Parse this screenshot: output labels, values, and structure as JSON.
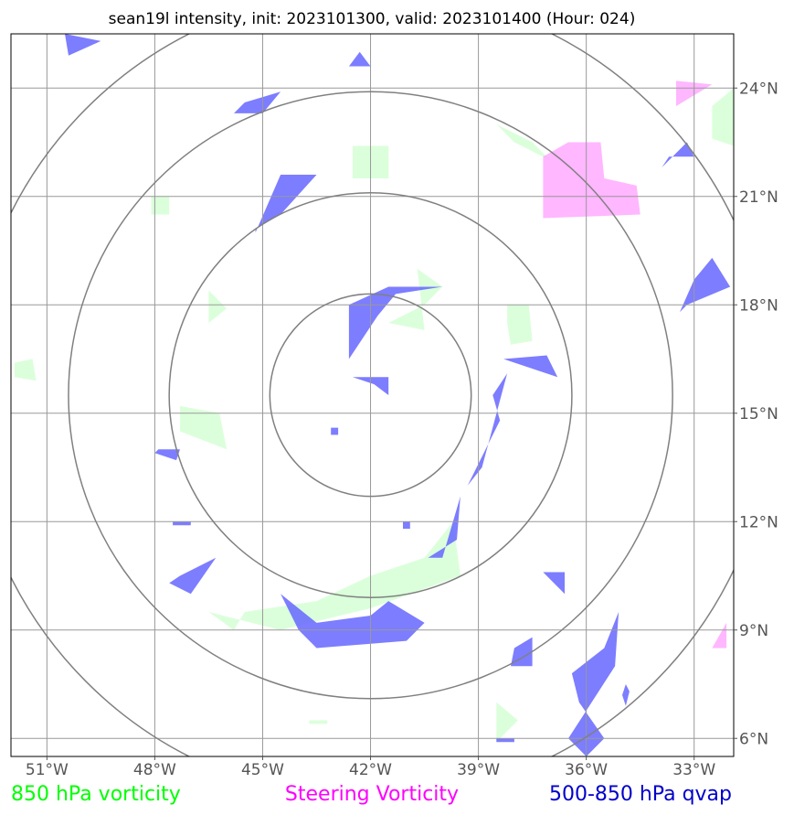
{
  "chart_data": {
    "type": "map",
    "title": "sean19l intensity, init: 2023101300, valid: 2023101400 (Hour: 024)",
    "x_ticks": [
      {
        "value": -51,
        "label": "51°W"
      },
      {
        "value": -48,
        "label": "48°W"
      },
      {
        "value": -45,
        "label": "45°W"
      },
      {
        "value": -42,
        "label": "42°W"
      },
      {
        "value": -39,
        "label": "39°W"
      },
      {
        "value": -36,
        "label": "36°W"
      },
      {
        "value": -33,
        "label": "33°W"
      }
    ],
    "y_ticks": [
      {
        "value": 6,
        "label": "6°N"
      },
      {
        "value": 9,
        "label": "9°N"
      },
      {
        "value": 12,
        "label": "12°N"
      },
      {
        "value": 15,
        "label": "15°N"
      },
      {
        "value": 18,
        "label": "18°N"
      },
      {
        "value": 21,
        "label": "21°N"
      },
      {
        "value": 24,
        "label": "24°N"
      }
    ],
    "xlim": [
      -52,
      -31.9
    ],
    "ylim": [
      5.5,
      25.5
    ],
    "grid": true,
    "range_rings": {
      "center": [
        -42,
        15.5
      ],
      "radii_deg": [
        2.8,
        5.6,
        8.4,
        11.2
      ],
      "color": "#808080"
    },
    "legend": [
      {
        "label": "850 hPa vorticity",
        "color": "#00ff00"
      },
      {
        "label": "Steering Vorticity",
        "color": "#ff00ff"
      },
      {
        "label": "500-850 hPa qvap",
        "color": "#0000cc"
      }
    ],
    "layers": [
      {
        "name": "850 hPa vorticity",
        "fill": "#ccffcc",
        "opacity": 0.7,
        "polygons": [
          [
            [
              -42.5,
              22.4
            ],
            [
              -41.5,
              22.4
            ],
            [
              -41.5,
              21.5
            ],
            [
              -42.5,
              21.5
            ]
          ],
          [
            [
              -48.1,
              21.0
            ],
            [
              -47.6,
              21.0
            ],
            [
              -47.6,
              20.5
            ],
            [
              -48.1,
              20.5
            ]
          ],
          [
            [
              -51.9,
              16.4
            ],
            [
              -51.4,
              16.5
            ],
            [
              -51.3,
              15.9
            ],
            [
              -51.9,
              16.0
            ]
          ],
          [
            [
              -46.5,
              18.4
            ],
            [
              -46.0,
              17.9
            ],
            [
              -46.5,
              17.5
            ]
          ],
          [
            [
              -40.7,
              19.0
            ],
            [
              -40.0,
              18.5
            ],
            [
              -40.5,
              18.0
            ],
            [
              -41.5,
              17.5
            ],
            [
              -40.5,
              17.3
            ]
          ],
          [
            [
              -38.2,
              18.0
            ],
            [
              -37.6,
              18.0
            ],
            [
              -37.5,
              17.0
            ],
            [
              -38.1,
              16.9
            ],
            [
              -38.2,
              17.5
            ]
          ],
          [
            [
              -38.5,
              23.0
            ],
            [
              -37.5,
              22.5
            ],
            [
              -37.0,
              22.0
            ],
            [
              -38.0,
              22.5
            ]
          ],
          [
            [
              -32.5,
              23.5
            ],
            [
              -31.9,
              24.0
            ],
            [
              -31.9,
              22.4
            ],
            [
              -32.5,
              22.6
            ]
          ],
          [
            [
              -47.3,
              15.2
            ],
            [
              -46.2,
              15.0
            ],
            [
              -46.0,
              14.0
            ],
            [
              -47.3,
              14.5
            ]
          ],
          [
            [
              -45.5,
              9.5
            ],
            [
              -43.5,
              9.8
            ],
            [
              -42.0,
              10.5
            ],
            [
              -40.5,
              11.0
            ],
            [
              -39.7,
              12.0
            ],
            [
              -39.5,
              10.5
            ],
            [
              -42.0,
              9.6
            ],
            [
              -44.5,
              9.0
            ],
            [
              -46.5,
              9.5
            ],
            [
              -45.8,
              9.0
            ]
          ],
          [
            [
              -43.7,
              6.5
            ],
            [
              -43.2,
              6.5
            ],
            [
              -43.2,
              6.4
            ],
            [
              -43.7,
              6.4
            ]
          ],
          [
            [
              -38.5,
              7.0
            ],
            [
              -37.9,
              6.5
            ],
            [
              -38.5,
              5.9
            ]
          ]
        ]
      },
      {
        "name": "Steering Vorticity",
        "fill": "#ff99ff",
        "opacity": 0.7,
        "polygons": [
          [
            [
              -37.2,
              22.1
            ],
            [
              -36.5,
              22.5
            ],
            [
              -35.6,
              22.5
            ],
            [
              -35.5,
              21.5
            ],
            [
              -34.6,
              21.3
            ],
            [
              -34.5,
              20.5
            ],
            [
              -37.2,
              20.4
            ]
          ],
          [
            [
              -33.5,
              24.2
            ],
            [
              -32.5,
              24.1
            ],
            [
              -33.5,
              23.5
            ]
          ],
          [
            [
              -32.5,
              8.5
            ],
            [
              -32.1,
              8.5
            ],
            [
              -32.1,
              9.2
            ]
          ]
        ]
      },
      {
        "name": "500-850 hPa qvap",
        "fill": "#6666ff",
        "opacity": 0.85,
        "polygons": [
          [
            [
              -50.5,
              25.5
            ],
            [
              -49.5,
              25.3
            ],
            [
              -50.4,
              24.9
            ]
          ],
          [
            [
              -42.3,
              25.0
            ],
            [
              -42.0,
              24.6
            ],
            [
              -42.6,
              24.6
            ]
          ],
          [
            [
              -45.5,
              23.6
            ],
            [
              -44.5,
              23.9
            ],
            [
              -45.0,
              23.3
            ],
            [
              -45.8,
              23.3
            ]
          ],
          [
            [
              -45.2,
              20.0
            ],
            [
              -44.5,
              21.6
            ],
            [
              -43.5,
              21.6
            ],
            [
              -44.5,
              20.5
            ],
            [
              -45.2,
              20.1
            ]
          ],
          [
            [
              -42.6,
              18.0
            ],
            [
              -41.5,
              18.5
            ],
            [
              -40.0,
              18.5
            ],
            [
              -41.3,
              18.3
            ],
            [
              -41.8,
              17.7
            ],
            [
              -42.6,
              16.5
            ],
            [
              -42.6,
              17.6
            ]
          ],
          [
            [
              -42.5,
              16.0
            ],
            [
              -41.5,
              16.0
            ],
            [
              -41.5,
              15.5
            ],
            [
              -41.9,
              15.8
            ]
          ],
          [
            [
              -38.3,
              16.5
            ],
            [
              -36.8,
              16.0
            ],
            [
              -37.1,
              16.6
            ]
          ],
          [
            [
              -33.2,
              18.0
            ],
            [
              -32.0,
              18.5
            ],
            [
              -32.5,
              19.3
            ],
            [
              -33.0,
              18.7
            ],
            [
              -33.4,
              17.8
            ]
          ],
          [
            [
              -33.2,
              22.5
            ],
            [
              -33.0,
              22.1
            ],
            [
              -33.7,
              22.1
            ],
            [
              -33.9,
              21.8
            ]
          ],
          [
            [
              -38.6,
              15.5
            ],
            [
              -38.2,
              16.1
            ],
            [
              -38.9,
              13.5
            ],
            [
              -39.3,
              13.0
            ],
            [
              -38.4,
              14.8
            ]
          ],
          [
            [
              -40.4,
              11.0
            ],
            [
              -39.6,
              11.5
            ],
            [
              -39.5,
              12.7
            ],
            [
              -40.0,
              11.0
            ]
          ],
          [
            [
              -47.9,
              14.0
            ],
            [
              -47.3,
              14.0
            ],
            [
              -47.4,
              13.7
            ],
            [
              -48.0,
              13.9
            ]
          ],
          [
            [
              -47.5,
              12.0
            ],
            [
              -47.0,
              12.0
            ],
            [
              -47.0,
              11.9
            ],
            [
              -47.5,
              11.9
            ]
          ],
          [
            [
              -47.3,
              10.5
            ],
            [
              -46.3,
              11.0
            ],
            [
              -47.0,
              10.0
            ],
            [
              -47.6,
              10.3
            ]
          ],
          [
            [
              -44.5,
              10.0
            ],
            [
              -43.5,
              9.2
            ],
            [
              -42.0,
              9.4
            ],
            [
              -41.5,
              9.8
            ],
            [
              -40.5,
              9.2
            ],
            [
              -41.0,
              8.7
            ],
            [
              -43.5,
              8.5
            ],
            [
              -44.0,
              9.0
            ]
          ],
          [
            [
              -37.2,
              10.6
            ],
            [
              -36.6,
              10.6
            ],
            [
              -36.6,
              10.0
            ]
          ],
          [
            [
              -38.0,
              8.5
            ],
            [
              -37.5,
              8.8
            ],
            [
              -37.5,
              8.0
            ],
            [
              -38.1,
              8.0
            ]
          ],
          [
            [
              -35.5,
              8.5
            ],
            [
              -35.1,
              9.5
            ],
            [
              -35.2,
              8.0
            ],
            [
              -36.5,
              6.0
            ],
            [
              -36.0,
              5.5
            ],
            [
              -35.5,
              6.0
            ],
            [
              -36.2,
              7.0
            ],
            [
              -36.4,
              7.8
            ]
          ],
          [
            [
              -34.9,
              7.5
            ],
            [
              -34.8,
              7.3
            ],
            [
              -34.9,
              6.9
            ],
            [
              -35.0,
              7.2
            ]
          ],
          [
            [
              -38.5,
              6.0
            ],
            [
              -38.0,
              6.0
            ],
            [
              -38.0,
              5.9
            ],
            [
              -38.5,
              5.9
            ]
          ],
          [
            [
              -43.1,
              14.6
            ],
            [
              -42.9,
              14.6
            ],
            [
              -42.9,
              14.4
            ],
            [
              -43.1,
              14.4
            ]
          ],
          [
            [
              -41.1,
              12.0
            ],
            [
              -40.9,
              12.0
            ],
            [
              -40.9,
              11.8
            ],
            [
              -41.1,
              11.8
            ]
          ]
        ]
      }
    ]
  }
}
